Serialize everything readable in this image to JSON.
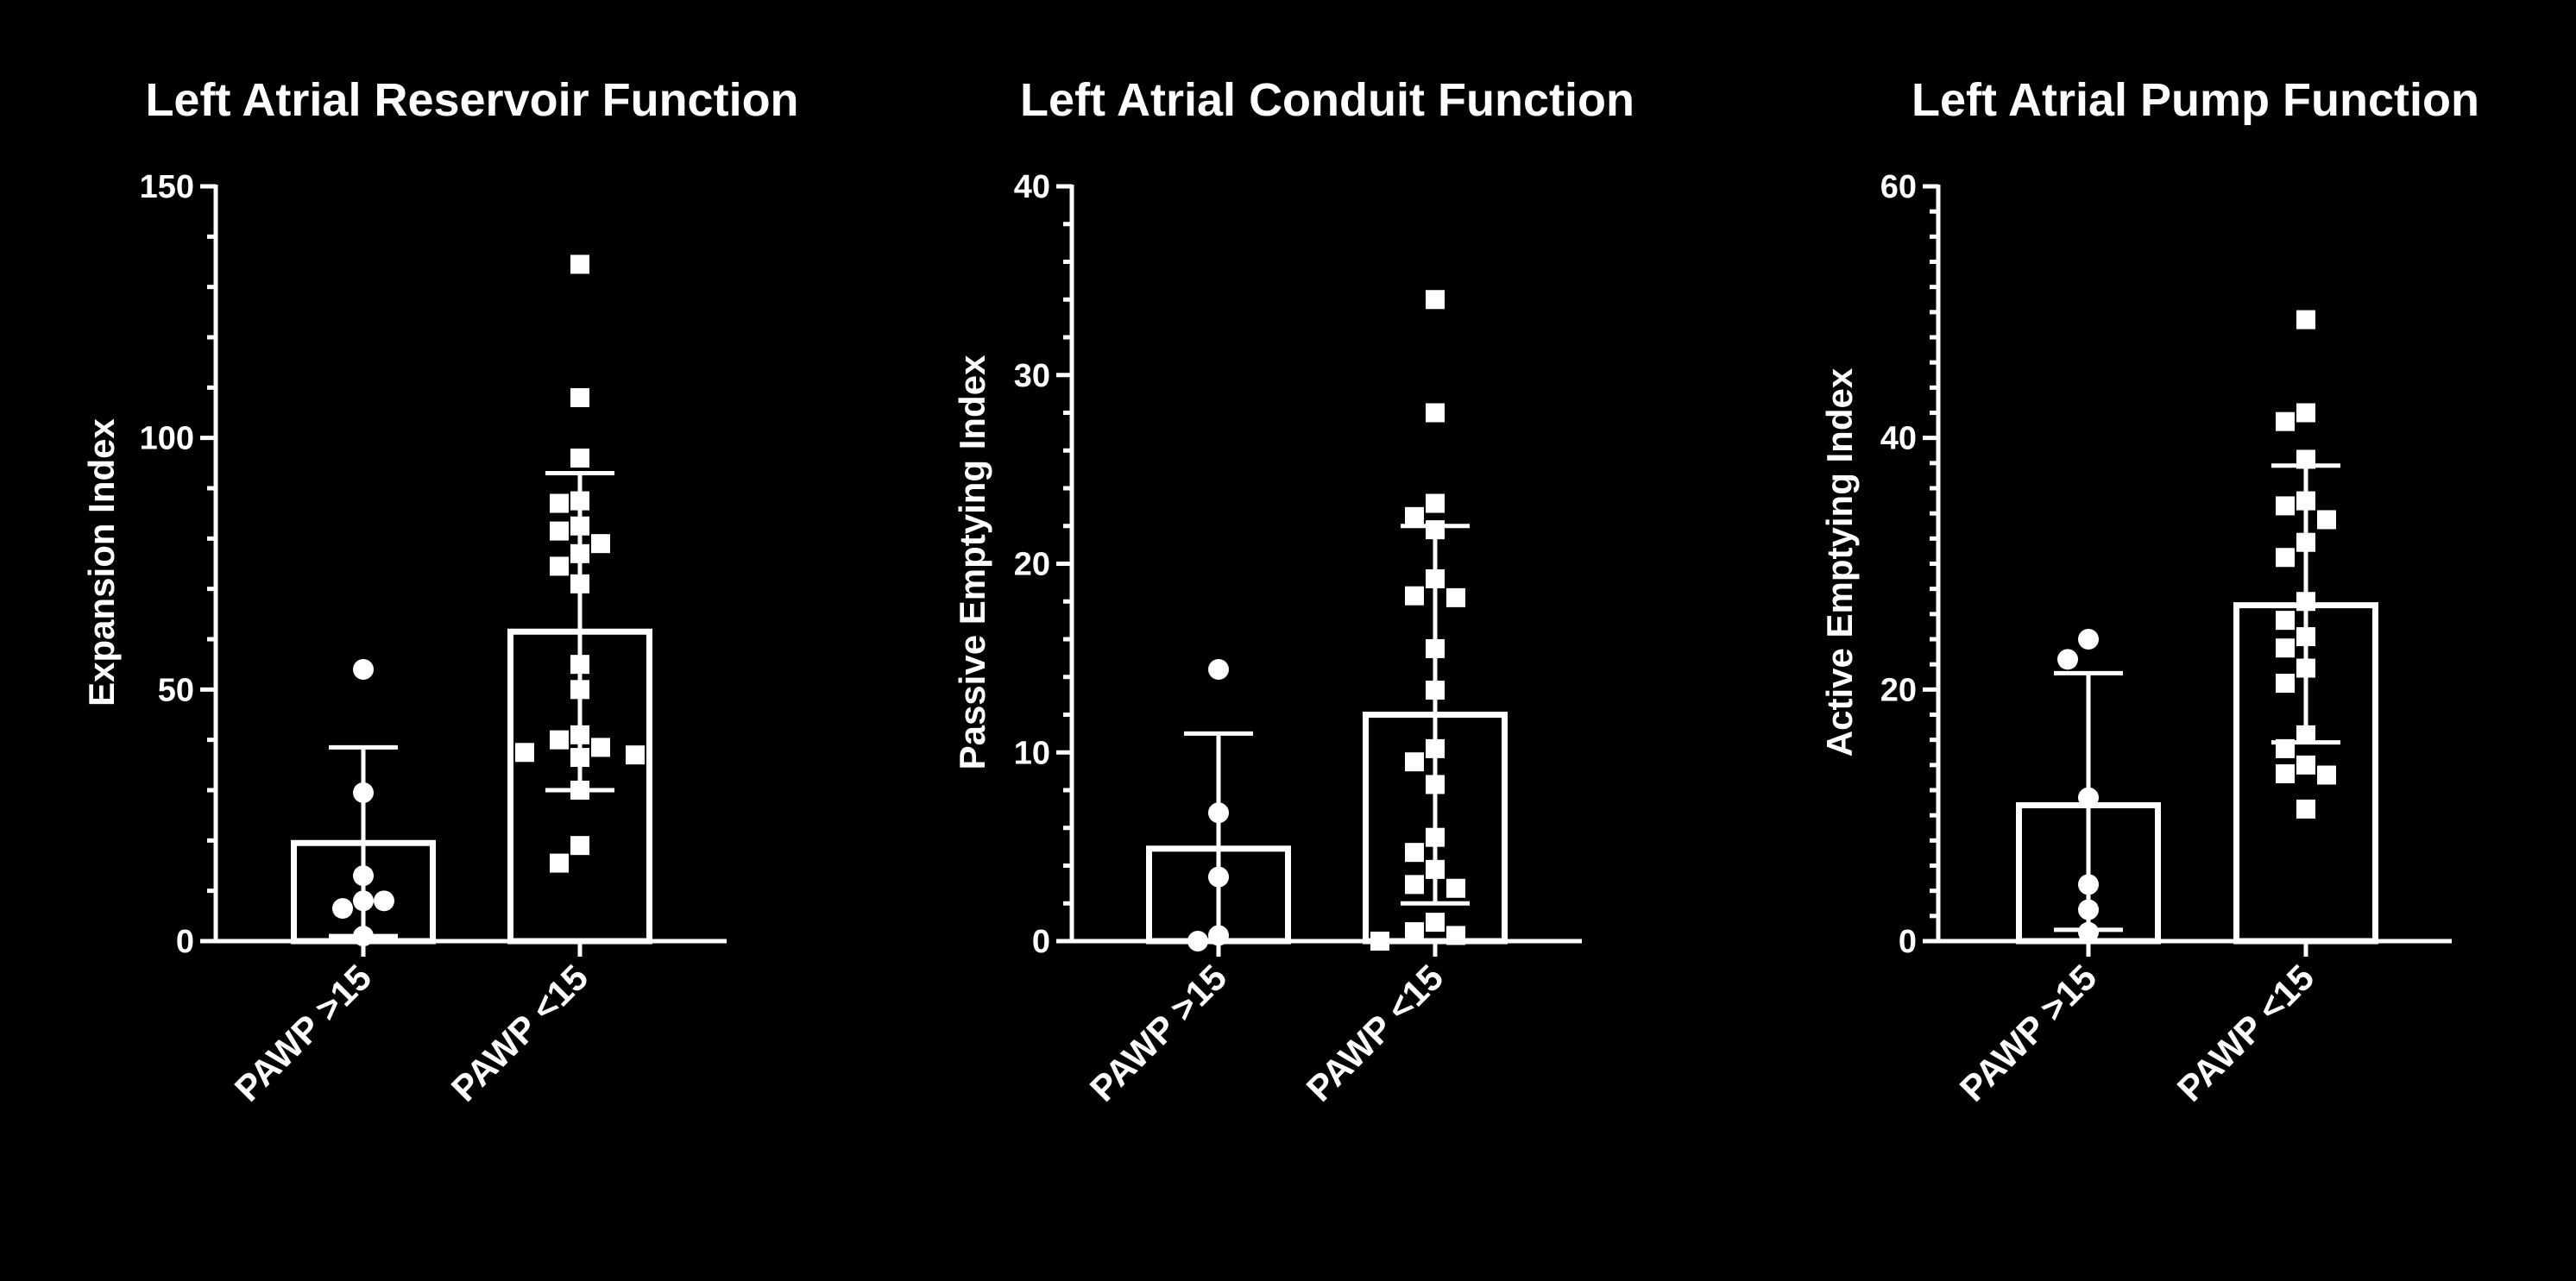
{
  "chart_data": [
    {
      "type": "bar",
      "title": "Left Atrial Reservoir Function",
      "ylabel": "Expansion Index",
      "ylim": [
        0,
        150
      ],
      "major_ticks": [
        0,
        50,
        100,
        150
      ],
      "minor_step": 10,
      "categories": [
        "PAWP >15",
        "PAWP <15"
      ],
      "means": [
        19.5,
        61.5
      ],
      "error_low": [
        1,
        30
      ],
      "error_high": [
        38.5,
        93
      ],
      "points": [
        [
          54,
          29.5,
          13,
          8,
          6.5,
          8,
          1
        ],
        [
          134.5,
          108,
          96,
          87.5,
          87,
          82.5,
          81.5,
          79,
          77,
          74.5,
          71,
          55,
          50,
          41,
          40,
          38.5,
          37.5,
          37,
          36.5,
          30,
          19,
          15.5
        ]
      ]
    },
    {
      "type": "bar",
      "title": "Left Atrial Conduit Function",
      "ylabel": "Passive Emptying Index",
      "ylim": [
        0,
        40
      ],
      "major_ticks": [
        0,
        10,
        20,
        30,
        40
      ],
      "minor_step": 2,
      "categories": [
        "PAWP >15",
        "PAWP <15"
      ],
      "means": [
        4.9,
        12
      ],
      "error_low": [
        0,
        2
      ],
      "error_high": [
        11,
        22
      ],
      "points": [
        [
          14.4,
          6.8,
          3.4,
          0.3,
          0
        ],
        [
          34,
          28,
          23.2,
          22.5,
          21.8,
          19.2,
          18.3,
          18.2,
          15.5,
          13.3,
          10.2,
          9.5,
          8.3,
          5.5,
          4.7,
          3.8,
          3,
          2.8,
          1,
          0.5,
          0.3,
          0
        ]
      ]
    },
    {
      "type": "bar",
      "title": "Left Atrial Pump Function",
      "ylabel": "Active Emptying Index",
      "ylim": [
        0,
        60
      ],
      "major_ticks": [
        0,
        20,
        40,
        60
      ],
      "minor_step": 2,
      "categories": [
        "PAWP >15",
        "PAWP <15"
      ],
      "means": [
        10.8,
        26.7
      ],
      "error_low": [
        0.9,
        15.8
      ],
      "error_high": [
        21.3,
        37.8
      ],
      "points": [
        [
          24,
          22.4,
          11.4,
          4.5,
          2.5,
          0.7
        ],
        [
          49.4,
          42,
          41.3,
          38.3,
          35,
          34.6,
          33.5,
          31.7,
          30.5,
          27,
          25.5,
          24.2,
          23.3,
          21.7,
          20.5,
          16.4,
          15.3,
          14,
          13.3,
          13.2,
          10.5
        ]
      ]
    }
  ]
}
